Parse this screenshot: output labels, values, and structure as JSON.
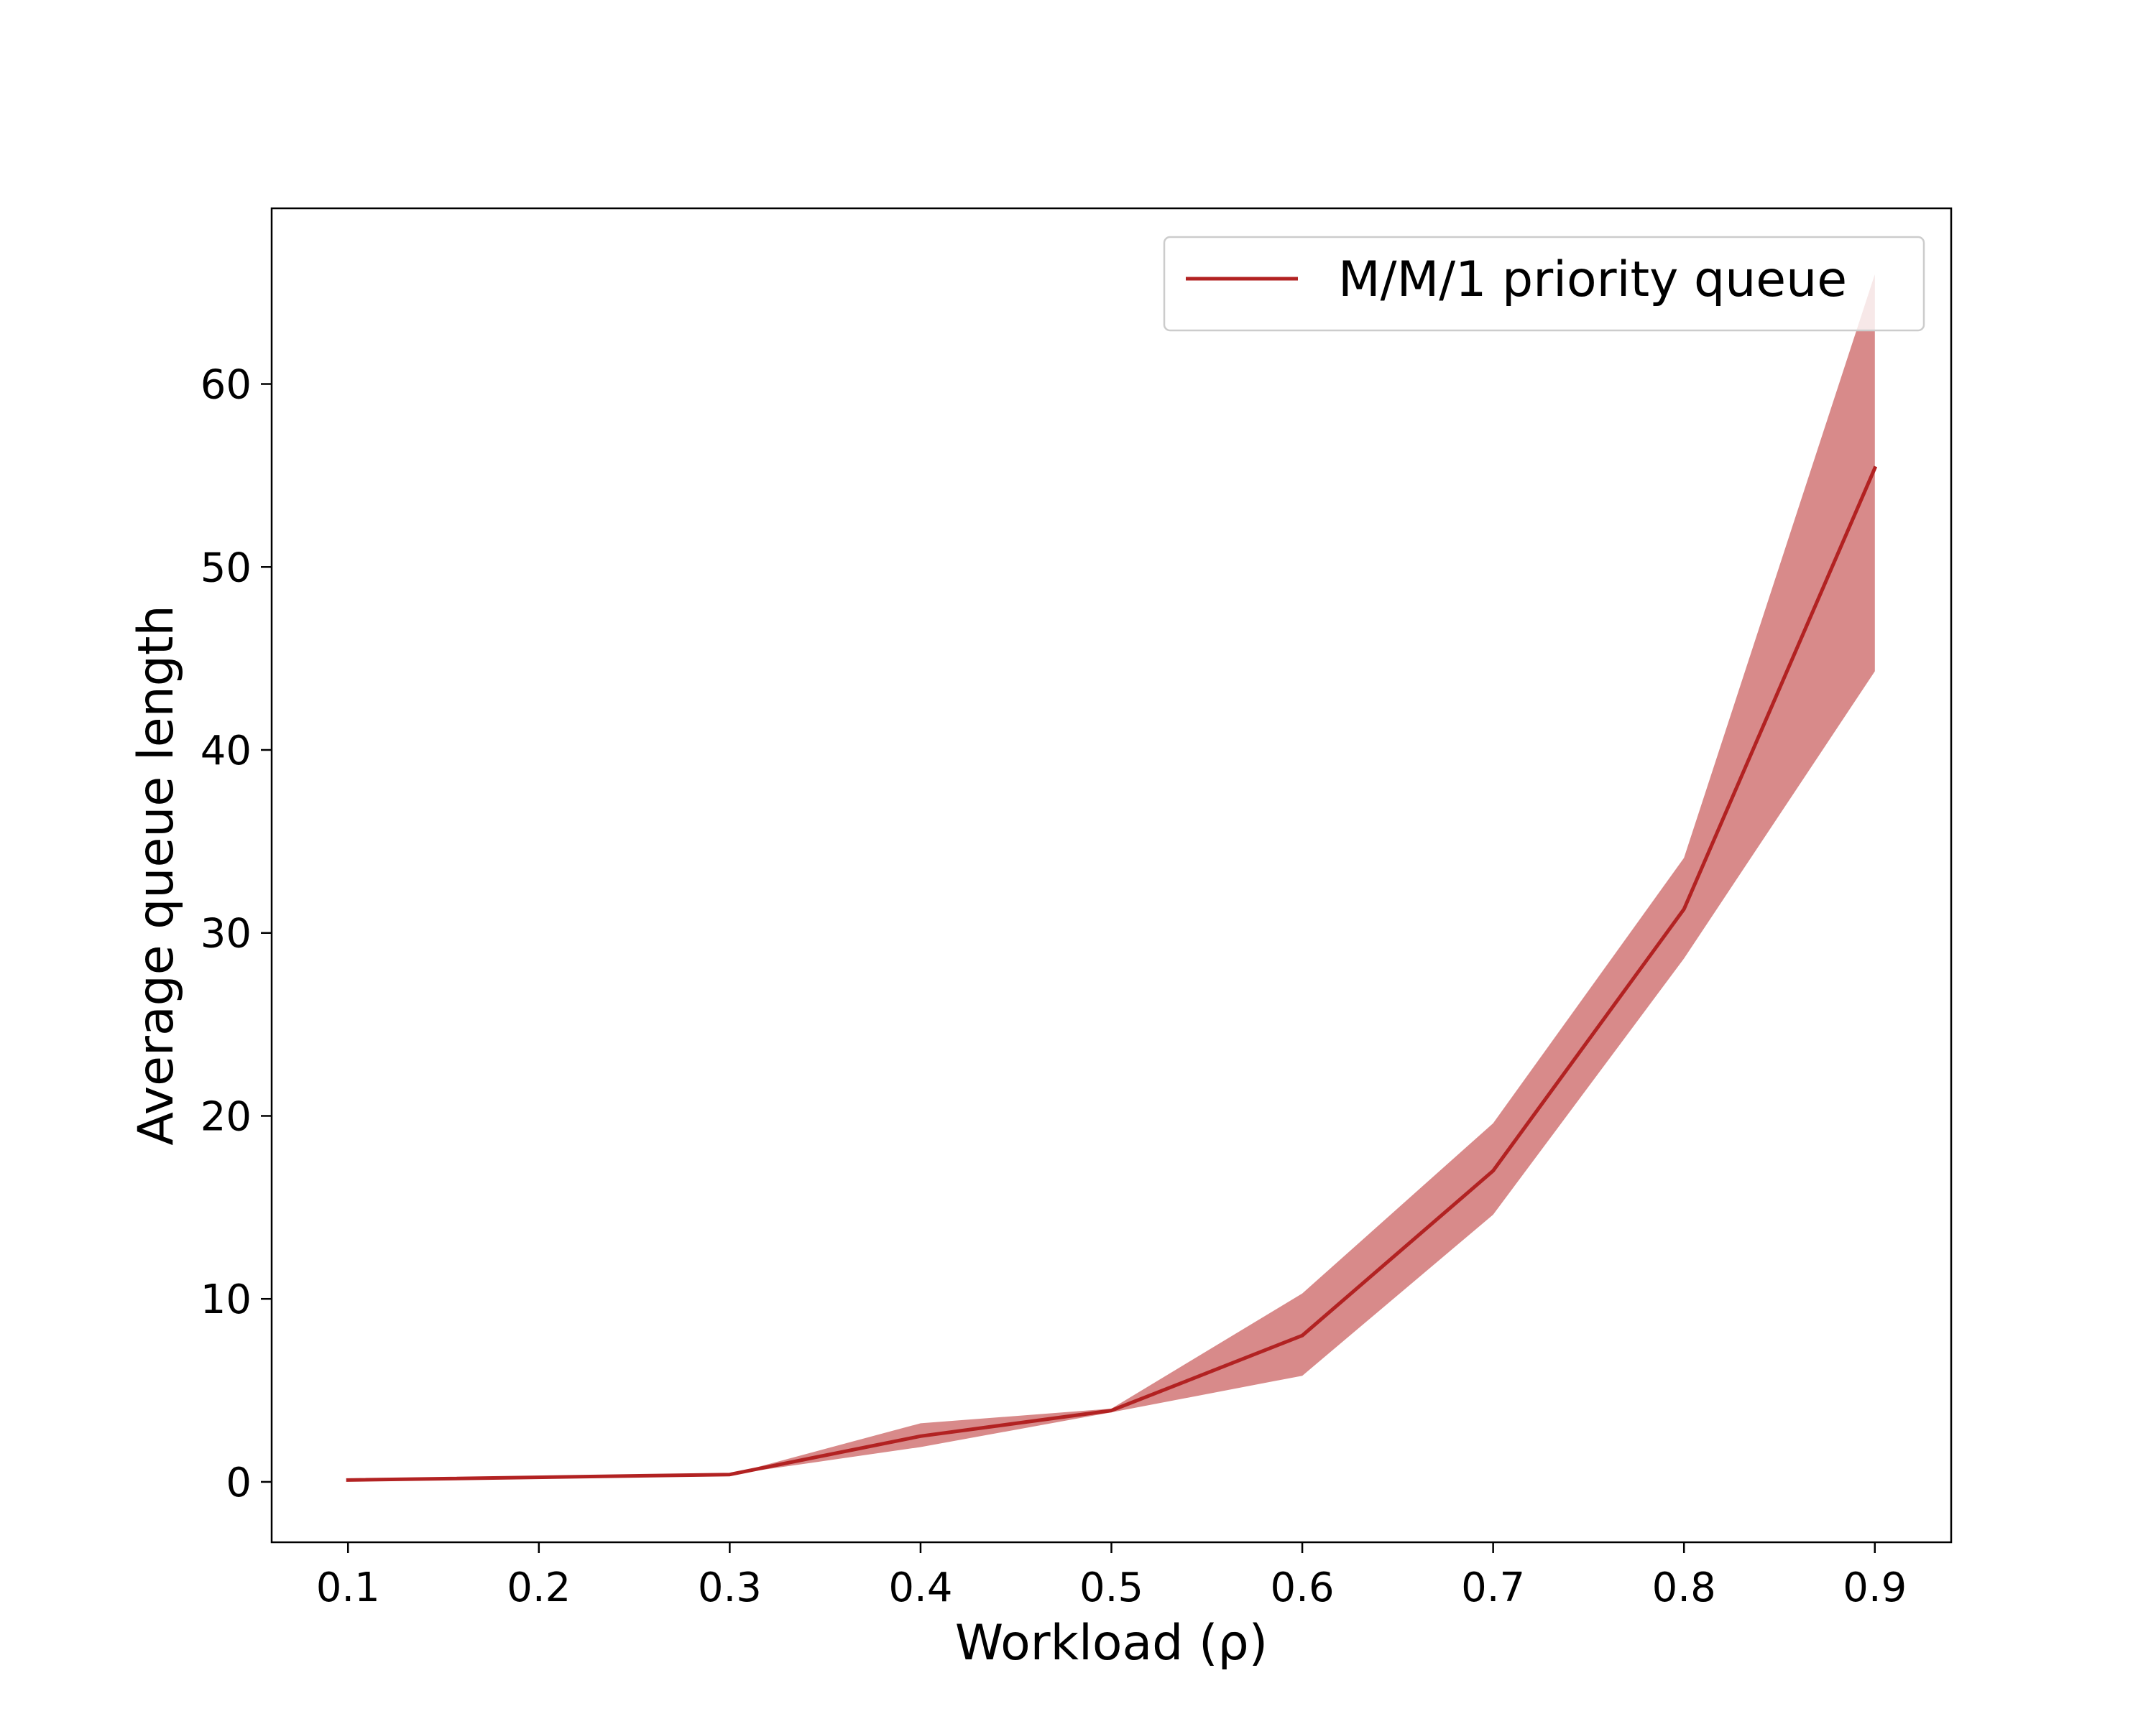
{
  "chart_data": {
    "type": "line",
    "x": [
      0.1,
      0.3,
      0.4,
      0.5,
      0.6,
      0.7,
      0.8,
      0.9
    ],
    "series": [
      {
        "name": "M/M/1 priority queue",
        "values": [
          0.1,
          0.4,
          2.5,
          3.9,
          8.0,
          17.0,
          31.3,
          55.4
        ],
        "band_lower": [
          0.1,
          0.4,
          1.9,
          3.8,
          5.8,
          14.6,
          28.6,
          44.3
        ],
        "band_upper": [
          0.1,
          0.4,
          3.2,
          4.0,
          10.3,
          19.6,
          34.1,
          66.0
        ],
        "color": "#b22222",
        "band_color": "#d88a8a"
      }
    ],
    "xlabel": "Workload (ρ)",
    "ylabel": "Average queue length",
    "xlim": [
      0.06,
      0.94
    ],
    "ylim": [
      -3.3,
      69.6
    ],
    "xticks": [
      0.1,
      0.2,
      0.3,
      0.4,
      0.5,
      0.6,
      0.7,
      0.8,
      0.9
    ],
    "xtick_labels": [
      "0.1",
      "0.2",
      "0.3",
      "0.4",
      "0.5",
      "0.6",
      "0.7",
      "0.8",
      "0.9"
    ],
    "yticks": [
      0,
      10,
      20,
      30,
      40,
      50,
      60
    ],
    "ytick_labels": [
      "0",
      "10",
      "20",
      "30",
      "40",
      "50",
      "60"
    ],
    "grid": false,
    "legend_position": "top-right"
  }
}
